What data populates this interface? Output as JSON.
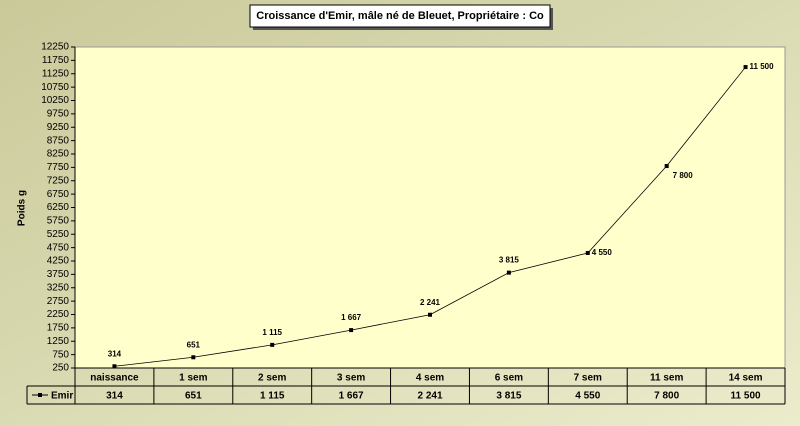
{
  "chart_data": {
    "type": "line",
    "title": "Croissance d'Emir, mâle né de Bleuet, Propriétaire : Co",
    "y_label": "Poids g",
    "categories": [
      "naissance",
      "1 sem",
      "2 sem",
      "3 sem",
      "4 sem",
      "6 sem",
      "7 sem",
      "11 sem",
      "14 sem"
    ],
    "series": [
      {
        "name": "Emir",
        "color": "#000000",
        "values": [
          314,
          651,
          1115,
          1667,
          2241,
          3815,
          4550,
          7800,
          11500
        ],
        "value_labels": [
          "314",
          "651",
          "1 115",
          "1 667",
          "2 241",
          "3 815",
          "4 550",
          "7 800",
          "11 500"
        ]
      }
    ],
    "ylim": [
      250,
      12250
    ],
    "yticks": [
      250,
      750,
      1250,
      1750,
      2250,
      2750,
      3250,
      3750,
      4250,
      4750,
      5250,
      5750,
      6250,
      6750,
      7250,
      7750,
      8250,
      8750,
      9250,
      9750,
      10250,
      10750,
      11250,
      11750,
      12250
    ],
    "grid": false,
    "data_table": true
  }
}
